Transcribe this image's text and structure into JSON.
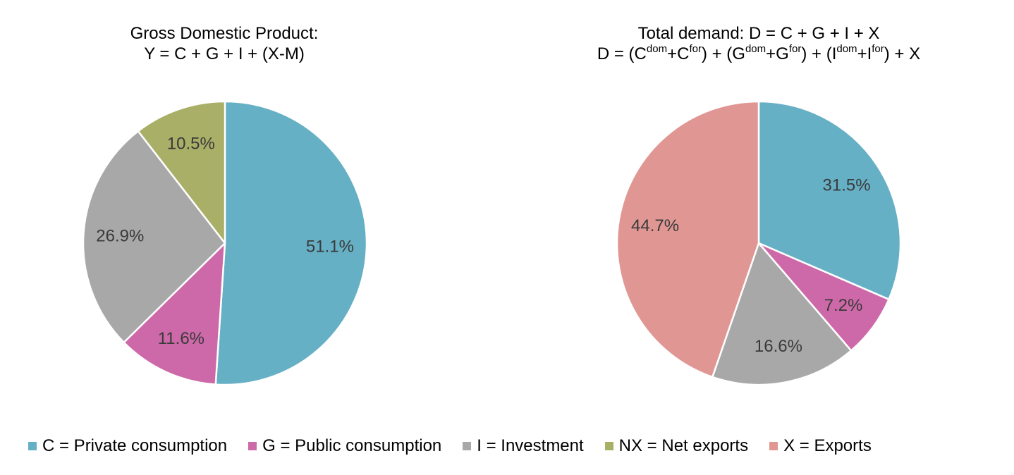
{
  "chart_data": [
    {
      "type": "pie",
      "title_line1": "Gross Domestic Product:",
      "title_line2": "Y = C + G + I + (X-M)",
      "slices": [
        {
          "key": "C",
          "value": 51.1,
          "label": "51.1%",
          "color": "#66b0c5"
        },
        {
          "key": "G",
          "value": 11.6,
          "label": "11.6%",
          "color": "#cd69a8"
        },
        {
          "key": "I",
          "value": 26.9,
          "label": "26.9%",
          "color": "#a8a8a8"
        },
        {
          "key": "NX",
          "value": 10.5,
          "label": "10.5%",
          "color": "#a9af67"
        }
      ],
      "start": "12 o'clock",
      "direction": "clockwise"
    },
    {
      "type": "pie",
      "title_line1": "Total demand: D = C + G + I + X",
      "title_line2_parts": {
        "p1": "D = (C",
        "s1": "dom",
        "p2": "+C",
        "s2": "for",
        "p3": ") + (G",
        "s3": "dom",
        "p4": "+G",
        "s4": "for",
        "p5": ") + (I",
        "s5": "dom",
        "p6": "+I",
        "s6": "for",
        "p7": ") + X"
      },
      "slices": [
        {
          "key": "C",
          "value": 31.5,
          "label": "31.5%",
          "color": "#66b0c5"
        },
        {
          "key": "G",
          "value": 7.2,
          "label": "7.2%",
          "color": "#cd69a8"
        },
        {
          "key": "I",
          "value": 16.6,
          "label": "16.6%",
          "color": "#a8a8a8"
        },
        {
          "key": "X",
          "value": 44.7,
          "label": "44.7%",
          "color": "#e09794"
        }
      ],
      "start": "12 o'clock",
      "direction": "clockwise"
    }
  ],
  "legend": [
    {
      "label": "C = Private consumption",
      "color": "#66b0c5"
    },
    {
      "label": "G = Public consumption",
      "color": "#cd69a8"
    },
    {
      "label": "I = Investment",
      "color": "#a8a8a8"
    },
    {
      "label": "NX = Net exports",
      "color": "#a9af67"
    },
    {
      "label": "X = Exports",
      "color": "#e09794"
    }
  ]
}
